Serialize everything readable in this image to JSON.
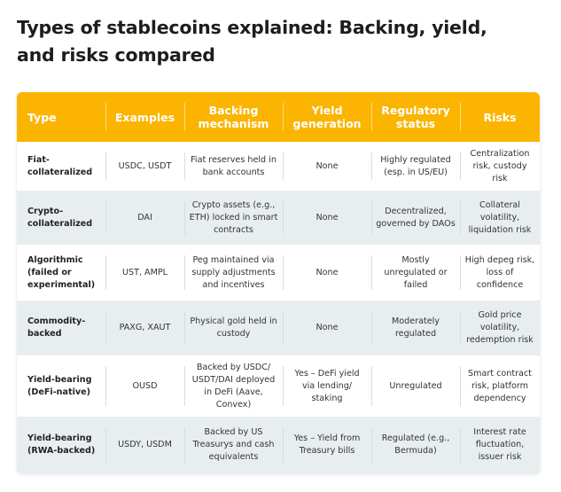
{
  "title": "Types of stablecoins explained: Backing, yield, and risks compared",
  "headers": [
    "Type",
    "Examples",
    "Backing mechanism",
    "Yield generation",
    "Regulatory status",
    "Risks"
  ],
  "rows": [
    [
      "Fiat-collateralized",
      "USDC, USDT",
      "Fiat reserves held in bank accounts",
      "None",
      "Highly regulated (esp. in US/EU)",
      "Centralization risk, custody risk"
    ],
    [
      "Crypto-collateralized",
      "DAI",
      "Crypto assets (e.g., ETH) locked in smart contracts",
      "None",
      "Decentralized, governed by DAOs",
      "Collateral volatility, liquidation risk"
    ],
    [
      "Algorithmic (failed or experimental)",
      "UST, AMPL",
      "Peg maintained via supply adjustments and incentives",
      "None",
      "Mostly unregulated or failed",
      "High depeg risk, loss of confidence"
    ],
    [
      "Commodity-backed",
      "PAXG, XAUT",
      "Physical gold held in custody",
      "None",
      "Moderately regulated",
      "Gold price volatility, redemption risk"
    ],
    [
      "Yield-bearing (DeFi-native)",
      "OUSD",
      "Backed by USDC/ USDT/DAI deployed in DeFi (Aave, Convex)",
      "Yes – DeFi yield via lending/ staking",
      "Unregulated",
      "Smart contract risk, platform dependency"
    ],
    [
      "Yield-bearing (RWA-backed)",
      "USDY, USDM",
      "Backed by US Treasurys and cash equivalents",
      "Yes – Yield from Treasury bills",
      "Regulated (e.g., Bermuda)",
      "Interest rate fluctuation, issuer risk"
    ]
  ],
  "colors": {
    "header": "#fbb400",
    "alt_row": "#e8eef0"
  }
}
